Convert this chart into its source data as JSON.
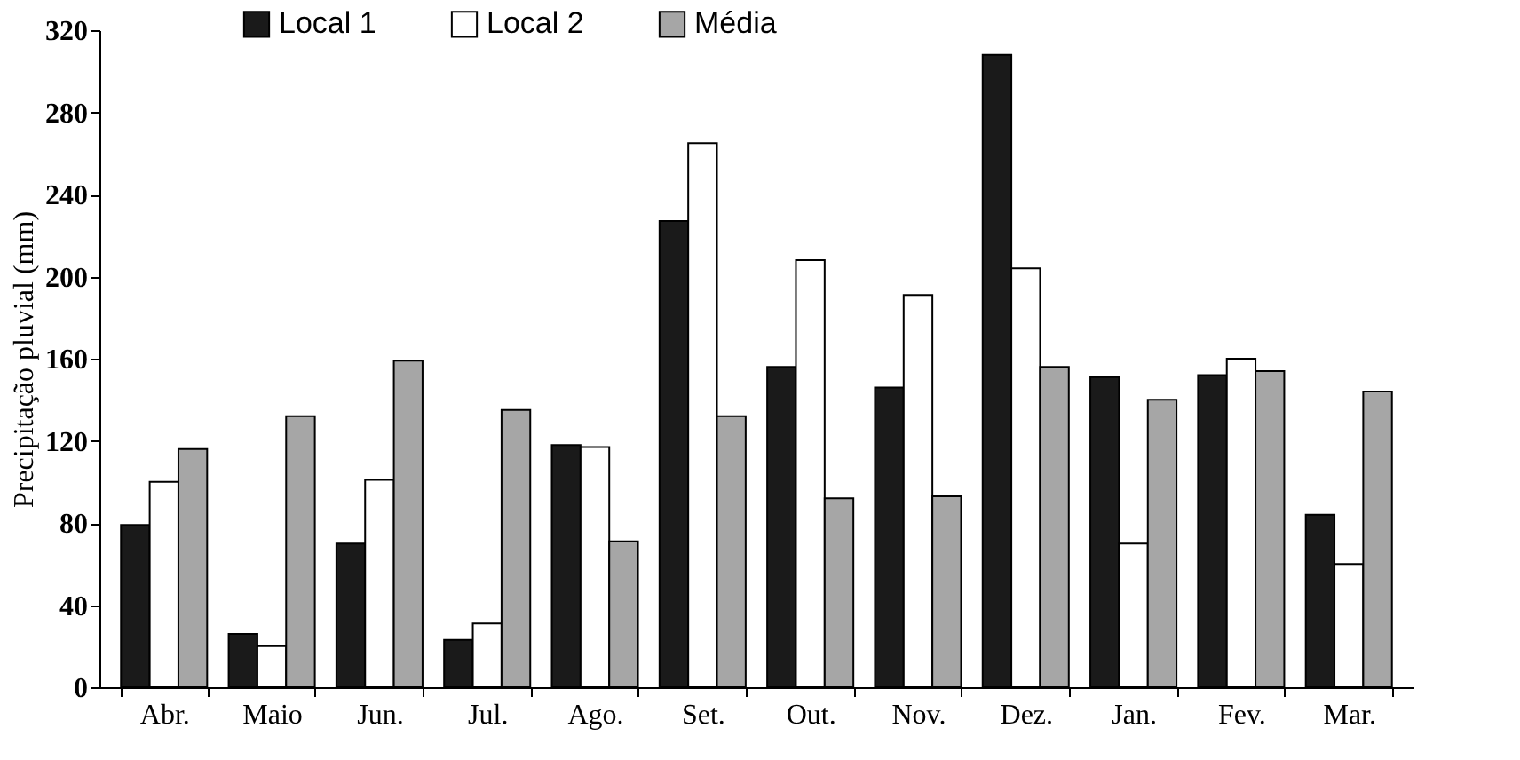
{
  "chart_data": {
    "type": "bar",
    "ylabel": "Precipitação pluvial (mm)",
    "categories": [
      "Abr.",
      "Maio",
      "Jun.",
      "Jul.",
      "Ago.",
      "Set.",
      "Out.",
      "Nov.",
      "Dez.",
      "Jan.",
      "Fev.",
      "Mar."
    ],
    "series": [
      {
        "name": "Local 1",
        "color": "#1a1a1a",
        "values": [
          79,
          26,
          70,
          23,
          118,
          227,
          156,
          146,
          308,
          151,
          152,
          84
        ]
      },
      {
        "name": "Local 2",
        "color": "#ffffff",
        "values": [
          100,
          20,
          101,
          31,
          117,
          265,
          208,
          191,
          204,
          70,
          160,
          60
        ]
      },
      {
        "name": "Média",
        "color": "#a6a6a6",
        "values": [
          116,
          132,
          159,
          135,
          71,
          132,
          92,
          93,
          156,
          140,
          154,
          144
        ]
      }
    ],
    "ylim": [
      0,
      320
    ],
    "yticks": [
      0,
      40,
      80,
      120,
      160,
      200,
      240,
      280,
      320
    ],
    "grid": false,
    "legend": "top left"
  }
}
